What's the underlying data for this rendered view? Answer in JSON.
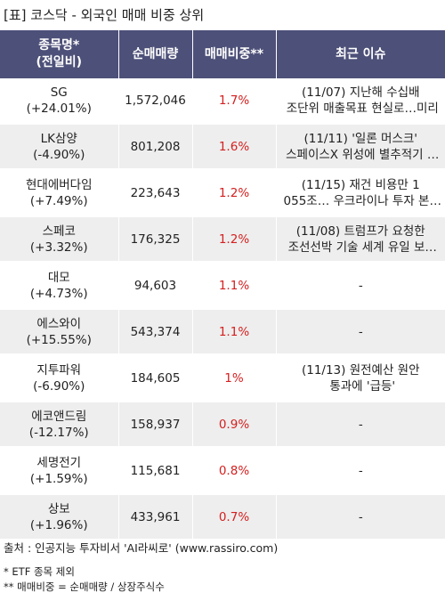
{
  "title": "[표] 코스닥 - 외국인 매매 비중 상위",
  "headers": {
    "name_line1": "종목명*",
    "name_line2": "(전일비)",
    "volume": "순매매량",
    "ratio": "매매비중**",
    "issue": "최근 이슈"
  },
  "rows": [
    {
      "name": "SG",
      "change": "(+24.01%)",
      "volume": "1,572,046",
      "ratio": "1.7%",
      "issue_line1": "(11/07) 지난해 수십배",
      "issue_line2": "조단위 매출목표 현실로…미리"
    },
    {
      "name": "LK삼양",
      "change": "(-4.90%)",
      "volume": "801,208",
      "ratio": "1.6%",
      "issue_line1": "(11/11) '일론 머스크'",
      "issue_line2": "스페이스X 위성에 별추적기 …"
    },
    {
      "name": "현대에버다임",
      "change": "(+7.49%)",
      "volume": "223,643",
      "ratio": "1.2%",
      "issue_line1": "(11/15) 재건 비용만 1",
      "issue_line2": "055조… 우크라이나 투자 본…"
    },
    {
      "name": "스페코",
      "change": "(+3.32%)",
      "volume": "176,325",
      "ratio": "1.2%",
      "issue_line1": "(11/08) 트럼프가 요청한",
      "issue_line2": "조선선박 기술 세계 유일 보…"
    },
    {
      "name": "대모",
      "change": "(+4.73%)",
      "volume": "94,603",
      "ratio": "1.1%",
      "issue_line1": "-",
      "issue_line2": ""
    },
    {
      "name": "에스와이",
      "change": "(+15.55%)",
      "volume": "543,374",
      "ratio": "1.1%",
      "issue_line1": "-",
      "issue_line2": ""
    },
    {
      "name": "지투파워",
      "change": "(-6.90%)",
      "volume": "184,605",
      "ratio": "1%",
      "issue_line1": "(11/13) 원전예산 원안",
      "issue_line2": "통과에 '급등'"
    },
    {
      "name": "에코앤드림",
      "change": "(-12.17%)",
      "volume": "158,937",
      "ratio": "0.9%",
      "issue_line1": "-",
      "issue_line2": ""
    },
    {
      "name": "세명전기",
      "change": "(+1.59%)",
      "volume": "115,681",
      "ratio": "0.8%",
      "issue_line1": "-",
      "issue_line2": ""
    },
    {
      "name": "상보",
      "change": "(+1.96%)",
      "volume": "433,961",
      "ratio": "0.7%",
      "issue_line1": "-",
      "issue_line2": ""
    }
  ],
  "source": "출처 : 인공지능 투자비서 'AI라씨로' (www.rassiro.com)",
  "notes": [
    "* ETF 종목 제외",
    "** 매매비중 = 순매매량 / 상장주식수"
  ],
  "colors": {
    "header_bg": "#4d5078",
    "ratio_text": "#d42020",
    "stripe_bg": "#eeeeee"
  }
}
